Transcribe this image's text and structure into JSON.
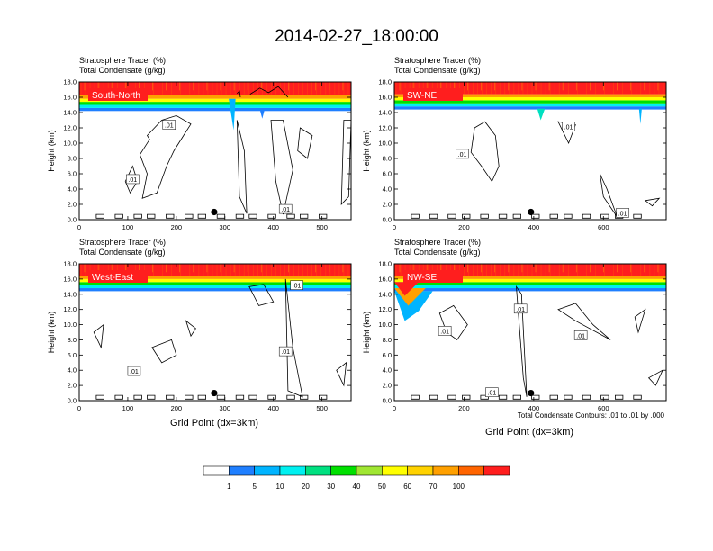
{
  "title": "2014-02-27_18:00:00",
  "panel_header": {
    "line1": "Stratosphere Tracer   (%)",
    "line2": "Total Condensate   (g/kg)"
  },
  "y_axis_label": "Height (km)",
  "x_axis_label": "Grid Point (dx=3km)",
  "contour_note": "Total Condensate Contours: .01 to .01 by .000",
  "colorbar": {
    "labels": [
      "1",
      "5",
      "10",
      "20",
      "30",
      "40",
      "50",
      "60",
      "70",
      "100"
    ],
    "colors": [
      "#ffffff",
      "#1f7fff",
      "#00b4ff",
      "#00f0f0",
      "#00e080",
      "#00e000",
      "#a0e632",
      "#ffff00",
      "#ffd200",
      "#ffa000",
      "#ff6400",
      "#ff1e1e"
    ]
  },
  "chart_data": [
    {
      "type": "heatmap",
      "label": "South-North",
      "xlim": [
        0,
        560
      ],
      "ylim": [
        0,
        18
      ],
      "xticks": [
        0,
        100,
        200,
        300,
        400,
        500
      ],
      "yticks": [
        0,
        2,
        4,
        6,
        8,
        10,
        12,
        14,
        16,
        18
      ],
      "tracer_bands_km": [
        [
          14.2,
          14.6,
          "#1f7fff"
        ],
        [
          14.6,
          15.0,
          "#00f0f0"
        ],
        [
          15.0,
          15.4,
          "#00e000"
        ],
        [
          15.4,
          15.8,
          "#ffff00"
        ],
        [
          15.8,
          16.3,
          "#ffa000"
        ],
        [
          16.3,
          18.0,
          "#ff1e1e"
        ]
      ],
      "contour_labels": [
        {
          "text": ".01",
          "x": 185,
          "y": 12.4
        },
        {
          "text": ".01",
          "x": 110,
          "y": 5.3
        },
        {
          "text": ".01",
          "x": 425,
          "y": 1.4
        }
      ],
      "marker": {
        "x": 278,
        "y": 1.0
      }
    },
    {
      "type": "heatmap",
      "label": "SW-NE",
      "xlim": [
        0,
        780
      ],
      "ylim": [
        0,
        18
      ],
      "xticks": [
        0,
        200,
        400,
        600
      ],
      "yticks": [
        0,
        2,
        4,
        6,
        8,
        10,
        12,
        14,
        16,
        18
      ],
      "tracer_bands_km": [
        [
          14.4,
          14.8,
          "#1f7fff"
        ],
        [
          14.8,
          15.2,
          "#00f0f0"
        ],
        [
          15.2,
          15.6,
          "#00e000"
        ],
        [
          15.6,
          16.0,
          "#ffff00"
        ],
        [
          16.0,
          16.4,
          "#ffa000"
        ],
        [
          16.4,
          18.0,
          "#ff1e1e"
        ]
      ],
      "contour_labels": [
        {
          "text": ".01",
          "x": 195,
          "y": 8.6
        },
        {
          "text": ".01",
          "x": 500,
          "y": 12.2
        },
        {
          "text": ".01",
          "x": 655,
          "y": 0.9
        }
      ],
      "marker": {
        "x": 392,
        "y": 1.0
      }
    },
    {
      "type": "heatmap",
      "label": "West-East",
      "xlim": [
        0,
        560
      ],
      "ylim": [
        0,
        18
      ],
      "xticks": [
        0,
        100,
        200,
        300,
        400,
        500
      ],
      "yticks": [
        0,
        2,
        4,
        6,
        8,
        10,
        12,
        14,
        16,
        18
      ],
      "tracer_bands_km": [
        [
          14.4,
          14.8,
          "#1f7fff"
        ],
        [
          14.8,
          15.2,
          "#00f0f0"
        ],
        [
          15.2,
          15.6,
          "#00e000"
        ],
        [
          15.6,
          16.0,
          "#ffff00"
        ],
        [
          16.0,
          16.4,
          "#ffa000"
        ],
        [
          16.4,
          18.0,
          "#ff1e1e"
        ]
      ],
      "contour_labels": [
        {
          "text": ".01",
          "x": 448,
          "y": 15.2
        },
        {
          "text": ".01",
          "x": 425,
          "y": 6.5
        },
        {
          "text": ".01",
          "x": 113,
          "y": 3.9
        }
      ],
      "marker": {
        "x": 278,
        "y": 1.0
      }
    },
    {
      "type": "heatmap",
      "label": "NW-SE",
      "xlim": [
        0,
        780
      ],
      "ylim": [
        0,
        18
      ],
      "xticks": [
        0,
        200,
        400,
        600
      ],
      "yticks": [
        0,
        2,
        4,
        6,
        8,
        10,
        12,
        14,
        16,
        18
      ],
      "tracer_bands_km": [
        [
          14.4,
          14.8,
          "#1f7fff"
        ],
        [
          14.8,
          15.2,
          "#00f0f0"
        ],
        [
          15.2,
          15.6,
          "#00e000"
        ],
        [
          15.6,
          16.0,
          "#ffff00"
        ],
        [
          16.0,
          16.4,
          "#ffa000"
        ],
        [
          16.4,
          18.0,
          "#ff1e1e"
        ]
      ],
      "contour_labels": [
        {
          "text": ".01",
          "x": 362,
          "y": 12.1
        },
        {
          "text": ".01",
          "x": 145,
          "y": 9.2
        },
        {
          "text": ".01",
          "x": 535,
          "y": 8.6
        },
        {
          "text": ".01",
          "x": 280,
          "y": 1.1
        }
      ],
      "marker": {
        "x": 392,
        "y": 1.0
      }
    }
  ]
}
